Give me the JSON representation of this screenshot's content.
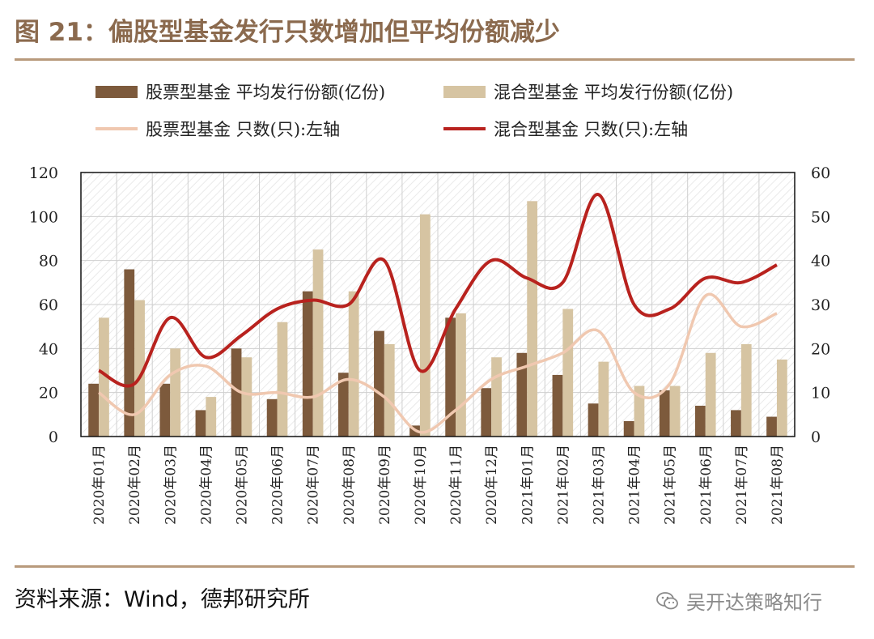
{
  "header": {
    "title": "图 21：偏股型基金发行只数增加但平均份额减少"
  },
  "footer": {
    "source": "资料来源：Wind，德邦研究所",
    "watermark": "吴开达策略知行",
    "watermark_icon": "wechat-icon"
  },
  "colors": {
    "title": "#8b6a4e",
    "rule": "#b89a7c",
    "stock_bar": "#7d5a3c",
    "mixed_bar": "#d6c4a2",
    "stock_line": "#f0c8b0",
    "mixed_line": "#b8221e"
  },
  "chart_data": {
    "type": "bar",
    "categories": [
      "2020年01月",
      "2020年02月",
      "2020年03月",
      "2020年04月",
      "2020年05月",
      "2020年06月",
      "2020年07月",
      "2020年08月",
      "2020年09月",
      "2020年10月",
      "2020年11月",
      "2020年12月",
      "2021年01月",
      "2021年02月",
      "2021年03月",
      "2021年04月",
      "2021年05月",
      "2021年06月",
      "2021年07月",
      "2021年08月"
    ],
    "series": [
      {
        "name": "股票型基金 平均发行份额(亿份)",
        "type": "bar",
        "axis": "left",
        "values": [
          24,
          76,
          24,
          12,
          40,
          17,
          66,
          29,
          48,
          5,
          54,
          22,
          38,
          28,
          15,
          7,
          21,
          14,
          12,
          9
        ]
      },
      {
        "name": "混合型基金 平均发行份额(亿份)",
        "type": "bar",
        "axis": "left",
        "values": [
          54,
          62,
          40,
          18,
          36,
          52,
          85,
          66,
          42,
          101,
          56,
          36,
          107,
          58,
          34,
          23,
          23,
          38,
          42,
          35
        ]
      },
      {
        "name": "股票型基金 只数(只):左轴",
        "type": "line",
        "axis": "right",
        "values": [
          10,
          5,
          14,
          16,
          10,
          10,
          9,
          13,
          9,
          1,
          6,
          13,
          16,
          19,
          24,
          10,
          12,
          32,
          25,
          28
        ]
      },
      {
        "name": "混合型基金 只数(只):左轴",
        "type": "line",
        "axis": "right",
        "values": [
          15,
          12,
          27,
          18,
          23,
          29,
          31,
          30,
          40,
          15,
          29,
          40,
          36,
          35,
          55,
          30,
          29,
          36,
          35,
          39
        ]
      }
    ],
    "ylim_left": [
      0,
      120
    ],
    "yticks_left": [
      0,
      20,
      40,
      60,
      80,
      100,
      120
    ],
    "ylim_right": [
      0,
      60
    ],
    "yticks_right": [
      0,
      10,
      20,
      30,
      40,
      50,
      60
    ],
    "grid": true,
    "legend_position": "top"
  }
}
